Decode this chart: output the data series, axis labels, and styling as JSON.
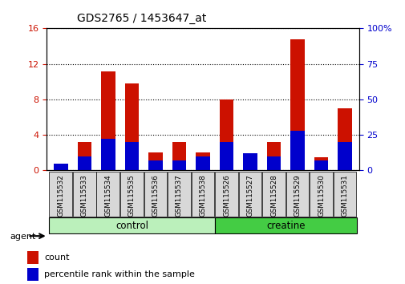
{
  "title": "GDS2765 / 1453647_at",
  "categories": [
    "GSM115532",
    "GSM115533",
    "GSM115534",
    "GSM115535",
    "GSM115536",
    "GSM115537",
    "GSM115538",
    "GSM115526",
    "GSM115527",
    "GSM115528",
    "GSM115529",
    "GSM115530",
    "GSM115531"
  ],
  "count_values": [
    0.5,
    3.2,
    11.2,
    9.8,
    2.0,
    3.2,
    2.0,
    8.0,
    1.5,
    3.2,
    14.8,
    1.5,
    7.0
  ],
  "percentile_values": [
    5,
    10,
    22,
    20,
    7,
    7,
    10,
    20,
    12,
    10,
    28,
    7,
    20
  ],
  "count_color": "#cc1100",
  "percentile_color": "#0000cc",
  "ylim_left": [
    0,
    16
  ],
  "ylim_right": [
    0,
    100
  ],
  "yticks_left": [
    0,
    4,
    8,
    12,
    16
  ],
  "yticks_right": [
    0,
    25,
    50,
    75,
    100
  ],
  "ytick_labels_right": [
    "0",
    "25",
    "50",
    "75",
    "100%"
  ],
  "bar_width": 0.6,
  "agent_label": "agent",
  "legend_count": "count",
  "legend_percentile": "percentile rank within the sample",
  "tick_label_color_left": "#cc1100",
  "tick_label_color_right": "#0000cc"
}
